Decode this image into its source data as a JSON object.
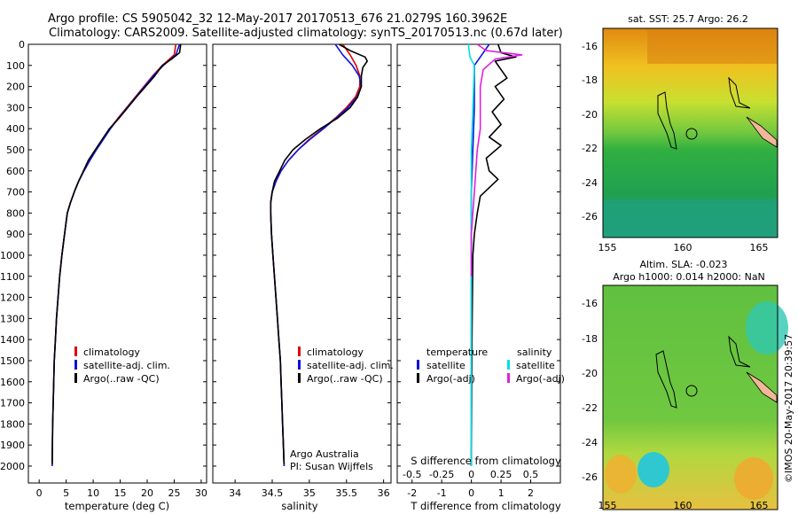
{
  "header": {
    "line1": "Argo profile: CS 5905042_32 12-May-2017 20170513_676 21.0279S 160.3962E",
    "line2": "Climatology: CARS2009. Satellite-adjusted climatology: synTS_20170513.nc (0.67d later)"
  },
  "colors": {
    "climatology": "#e00000",
    "satellite": "#1010e0",
    "argo": "#000000",
    "satellite_s": "#00e0e0",
    "argo_s": "#e020e0"
  },
  "chart_data": [
    {
      "type": "line",
      "xlabel": "temperature (deg C)",
      "xlim": [
        -2,
        31
      ],
      "xticks": [
        0,
        5,
        10,
        15,
        20,
        25,
        30
      ],
      "ylim": [
        2080,
        0
      ],
      "yticks": [
        0,
        100,
        200,
        300,
        400,
        500,
        600,
        700,
        800,
        900,
        1000,
        1100,
        1200,
        1300,
        1400,
        1500,
        1600,
        1700,
        1800,
        1900,
        2000
      ],
      "legend": [
        "climatology",
        "satellite-adj. clim.",
        "Argo(..raw -QC)"
      ],
      "series": [
        {
          "name": "climatology",
          "color": "#e00000",
          "points": [
            [
              25.3,
              0
            ],
            [
              25.0,
              50
            ],
            [
              22.8,
              100
            ],
            [
              21.0,
              150
            ],
            [
              19.4,
              200
            ],
            [
              17.8,
              250
            ],
            [
              16.2,
              300
            ],
            [
              14.6,
              350
            ],
            [
              13.1,
              400
            ],
            [
              11.8,
              450
            ],
            [
              10.5,
              500
            ],
            [
              9.4,
              550
            ],
            [
              8.3,
              600
            ],
            [
              7.3,
              650
            ],
            [
              6.5,
              700
            ],
            [
              5.8,
              750
            ],
            [
              5.2,
              800
            ],
            [
              4.7,
              900
            ],
            [
              4.2,
              1000
            ],
            [
              3.8,
              1100
            ],
            [
              3.5,
              1200
            ],
            [
              3.2,
              1300
            ],
            [
              3.0,
              1400
            ],
            [
              2.8,
              1500
            ],
            [
              2.7,
              1600
            ],
            [
              2.6,
              1700
            ],
            [
              2.5,
              1800
            ],
            [
              2.45,
              1900
            ],
            [
              2.4,
              2000
            ]
          ]
        },
        {
          "name": "satellite-adj. clim.",
          "color": "#1010e0",
          "points": [
            [
              26.0,
              0
            ],
            [
              25.3,
              50
            ],
            [
              23.0,
              100
            ],
            [
              21.1,
              150
            ],
            [
              19.5,
              200
            ],
            [
              17.9,
              250
            ],
            [
              16.3,
              300
            ],
            [
              14.7,
              350
            ],
            [
              13.2,
              400
            ],
            [
              11.9,
              450
            ],
            [
              10.6,
              500
            ],
            [
              9.4,
              550
            ],
            [
              8.3,
              600
            ],
            [
              7.3,
              650
            ],
            [
              6.5,
              700
            ],
            [
              5.8,
              750
            ],
            [
              5.2,
              800
            ],
            [
              4.7,
              900
            ],
            [
              4.2,
              1000
            ],
            [
              3.8,
              1100
            ],
            [
              3.5,
              1200
            ],
            [
              3.2,
              1300
            ],
            [
              3.0,
              1400
            ],
            [
              2.8,
              1500
            ],
            [
              2.7,
              1600
            ],
            [
              2.6,
              1700
            ],
            [
              2.5,
              1800
            ],
            [
              2.45,
              1900
            ],
            [
              2.4,
              2000
            ]
          ]
        },
        {
          "name": "Argo(..raw -QC)",
          "color": "#000000",
          "points": [
            [
              26.2,
              0
            ],
            [
              26.0,
              40
            ],
            [
              24.5,
              70
            ],
            [
              22.8,
              100
            ],
            [
              21.4,
              150
            ],
            [
              19.7,
              200
            ],
            [
              18.0,
              250
            ],
            [
              16.4,
              300
            ],
            [
              14.8,
              350
            ],
            [
              13.0,
              400
            ],
            [
              11.7,
              450
            ],
            [
              10.4,
              500
            ],
            [
              9.1,
              550
            ],
            [
              8.2,
              600
            ],
            [
              7.3,
              650
            ],
            [
              6.5,
              700
            ],
            [
              5.8,
              750
            ],
            [
              5.2,
              800
            ],
            [
              4.7,
              900
            ],
            [
              4.2,
              1000
            ],
            [
              3.8,
              1100
            ],
            [
              3.5,
              1200
            ],
            [
              3.2,
              1300
            ],
            [
              3.0,
              1400
            ],
            [
              2.8,
              1500
            ],
            [
              2.7,
              1600
            ],
            [
              2.6,
              1700
            ],
            [
              2.5,
              1800
            ],
            [
              2.45,
              1900
            ],
            [
              2.4,
              1990
            ]
          ]
        }
      ]
    },
    {
      "type": "line",
      "xlabel": "salinity",
      "xlim": [
        33.7,
        36.1
      ],
      "xticks": [
        34,
        34.5,
        35,
        35.5,
        36
      ],
      "ylim": [
        2080,
        0
      ],
      "legend": [
        "climatology",
        "satellite-adj. clim.",
        "Argo(..raw -QC)"
      ],
      "annotation": [
        "Argo Australia",
        "PI: Susan Wijffels"
      ],
      "series": [
        {
          "name": "climatology",
          "color": "#e00000",
          "points": [
            [
              35.45,
              0
            ],
            [
              35.55,
              50
            ],
            [
              35.63,
              100
            ],
            [
              35.68,
              150
            ],
            [
              35.68,
              200
            ],
            [
              35.62,
              250
            ],
            [
              35.5,
              300
            ],
            [
              35.35,
              350
            ],
            [
              35.18,
              400
            ],
            [
              35.0,
              450
            ],
            [
              34.85,
              500
            ],
            [
              34.72,
              550
            ],
            [
              34.62,
              600
            ],
            [
              34.55,
              650
            ],
            [
              34.5,
              700
            ],
            [
              34.48,
              750
            ],
            [
              34.48,
              800
            ],
            [
              34.49,
              900
            ],
            [
              34.51,
              1000
            ],
            [
              34.53,
              1100
            ],
            [
              34.55,
              1200
            ],
            [
              34.57,
              1300
            ],
            [
              34.59,
              1400
            ],
            [
              34.61,
              1500
            ],
            [
              34.62,
              1600
            ],
            [
              34.63,
              1700
            ],
            [
              34.64,
              1800
            ],
            [
              34.65,
              1900
            ],
            [
              34.66,
              2000
            ]
          ]
        },
        {
          "name": "satellite-adj. clim.",
          "color": "#1010e0",
          "points": [
            [
              35.35,
              0
            ],
            [
              35.45,
              50
            ],
            [
              35.58,
              100
            ],
            [
              35.67,
              150
            ],
            [
              35.7,
              200
            ],
            [
              35.64,
              250
            ],
            [
              35.52,
              300
            ],
            [
              35.36,
              350
            ],
            [
              35.19,
              400
            ],
            [
              35.01,
              450
            ],
            [
              34.85,
              500
            ],
            [
              34.72,
              550
            ],
            [
              34.62,
              600
            ],
            [
              34.55,
              650
            ],
            [
              34.5,
              700
            ],
            [
              34.48,
              750
            ],
            [
              34.48,
              800
            ],
            [
              34.49,
              900
            ],
            [
              34.51,
              1000
            ],
            [
              34.53,
              1100
            ],
            [
              34.55,
              1200
            ],
            [
              34.57,
              1300
            ],
            [
              34.59,
              1400
            ],
            [
              34.61,
              1500
            ],
            [
              34.62,
              1600
            ],
            [
              34.63,
              1700
            ],
            [
              34.64,
              1800
            ],
            [
              34.65,
              1900
            ],
            [
              34.66,
              2000
            ]
          ]
        },
        {
          "name": "Argo(..raw -QC)",
          "color": "#000000",
          "points": [
            [
              35.4,
              0
            ],
            [
              35.55,
              30
            ],
            [
              35.75,
              60
            ],
            [
              35.78,
              80
            ],
            [
              35.72,
              110
            ],
            [
              35.7,
              150
            ],
            [
              35.7,
              200
            ],
            [
              35.65,
              250
            ],
            [
              35.55,
              300
            ],
            [
              35.38,
              350
            ],
            [
              35.15,
              400
            ],
            [
              34.95,
              450
            ],
            [
              34.78,
              500
            ],
            [
              34.67,
              550
            ],
            [
              34.6,
              600
            ],
            [
              34.53,
              650
            ],
            [
              34.5,
              700
            ],
            [
              34.48,
              750
            ],
            [
              34.48,
              800
            ],
            [
              34.49,
              900
            ],
            [
              34.51,
              1000
            ],
            [
              34.53,
              1100
            ],
            [
              34.55,
              1200
            ],
            [
              34.57,
              1300
            ],
            [
              34.59,
              1400
            ],
            [
              34.61,
              1500
            ],
            [
              34.62,
              1600
            ],
            [
              34.63,
              1700
            ],
            [
              34.64,
              1800
            ],
            [
              34.65,
              1900
            ],
            [
              34.66,
              1990
            ]
          ]
        }
      ]
    },
    {
      "type": "line",
      "xlabel_top": "S difference from climatology",
      "xlabel_bottom": "T difference from climatology",
      "xlim_T": [
        -2.5,
        3
      ],
      "xticks_T": [
        -2,
        -1,
        0,
        1,
        2
      ],
      "xticks_S": [
        -0.5,
        -0.25,
        0,
        0.25,
        0.5
      ],
      "xticklabels_S": [
        "-0.5",
        "-0.25",
        "0",
        "0.25",
        "0.5"
      ],
      "ylim": [
        2080,
        0
      ],
      "legend_titles": [
        "temperature",
        "salinity"
      ],
      "legend": [
        "satellite",
        "Argo(-adj)",
        "satellite",
        "Argo(-adj)"
      ],
      "series": [
        {
          "name": "satellite",
          "color": "#1010e0",
          "points": [
            [
              0.6,
              0
            ],
            [
              0.3,
              60
            ],
            [
              0.1,
              100
            ],
            [
              0.1,
              300
            ],
            [
              0.05,
              500
            ],
            [
              0.0,
              700
            ],
            [
              0.0,
              1000
            ],
            [
              0.0,
              1500
            ],
            [
              0.0,
              2000
            ]
          ]
        },
        {
          "name": "Argo(-adj)",
          "color": "#000000",
          "points": [
            [
              0.9,
              0
            ],
            [
              1.0,
              40
            ],
            [
              1.5,
              60
            ],
            [
              0.8,
              80
            ],
            [
              1.0,
              120
            ],
            [
              1.2,
              160
            ],
            [
              0.8,
              200
            ],
            [
              1.1,
              260
            ],
            [
              0.7,
              320
            ],
            [
              1.0,
              380
            ],
            [
              0.6,
              440
            ],
            [
              1.0,
              480
            ],
            [
              0.5,
              540
            ],
            [
              0.6,
              600
            ],
            [
              0.9,
              640
            ],
            [
              0.3,
              720
            ],
            [
              0.2,
              800
            ],
            [
              0.1,
              900
            ],
            [
              0.05,
              1000
            ],
            [
              0.02,
              1400
            ],
            [
              0.0,
              2000
            ]
          ]
        },
        {
          "name": "satellite",
          "color": "#00e0e0",
          "points": [
            [
              -0.1,
              0
            ],
            [
              -0.05,
              60
            ],
            [
              0.1,
              100
            ],
            [
              0.05,
              300
            ],
            [
              0.0,
              500
            ],
            [
              0.0,
              800
            ],
            [
              0.0,
              1500
            ],
            [
              0.0,
              2000
            ]
          ]
        },
        {
          "name": "Argo(-adj)",
          "color": "#e020e0",
          "points": [
            [
              0.2,
              0
            ],
            [
              0.5,
              30
            ],
            [
              1.7,
              50
            ],
            [
              0.8,
              70
            ],
            [
              0.4,
              120
            ],
            [
              0.3,
              200
            ],
            [
              0.3,
              400
            ],
            [
              0.2,
              500
            ],
            [
              0.1,
              700
            ],
            [
              0.0,
              900
            ],
            [
              0.0,
              1100
            ]
          ]
        }
      ]
    }
  ],
  "map_top": {
    "title": "sat. SST: 25.7  Argo: 26.2",
    "xticks": [
      "155",
      "160",
      "165"
    ],
    "yticks": [
      "-16",
      "-18",
      "-20",
      "-22",
      "-24",
      "-26"
    ]
  },
  "map_bottom": {
    "title1": "Altim. SLA: -0.023",
    "title2": "Argo h1000: 0.014  h2000: NaN",
    "xticks": [
      "155",
      "160",
      "165"
    ],
    "yticks": [
      "-16",
      "-18",
      "-20",
      "-22",
      "-24",
      "-26"
    ]
  },
  "credit": "©IMOS 20-May-2017 20:39:57"
}
